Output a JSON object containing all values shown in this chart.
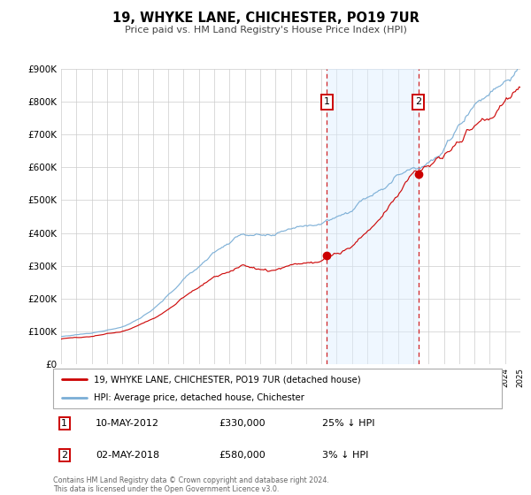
{
  "title": "19, WHYKE LANE, CHICHESTER, PO19 7UR",
  "subtitle": "Price paid vs. HM Land Registry's House Price Index (HPI)",
  "legend_label_red": "19, WHYKE LANE, CHICHESTER, PO19 7UR (detached house)",
  "legend_label_blue": "HPI: Average price, detached house, Chichester",
  "year_start": 1995,
  "year_end": 2025,
  "ylim": [
    0,
    900000
  ],
  "yticks": [
    0,
    100000,
    200000,
    300000,
    400000,
    500000,
    600000,
    700000,
    800000,
    900000
  ],
  "ytick_labels": [
    "£0",
    "£100K",
    "£200K",
    "£300K",
    "£400K",
    "£500K",
    "£600K",
    "£700K",
    "£800K",
    "£900K"
  ],
  "sale1_year": 2012.36,
  "sale1_price": 330000,
  "sale1_label": "10-MAY-2012",
  "sale1_pct": "25% ↓ HPI",
  "sale2_year": 2018.33,
  "sale2_price": 580000,
  "sale2_label": "02-MAY-2018",
  "sale2_pct": "3% ↓ HPI",
  "color_red": "#cc0000",
  "color_blue": "#7aaed6",
  "grid_color": "#cccccc",
  "shade_color": "#ddeeff",
  "footnote1": "Contains HM Land Registry data © Crown copyright and database right 2024.",
  "footnote2": "This data is licensed under the Open Government Licence v3.0."
}
